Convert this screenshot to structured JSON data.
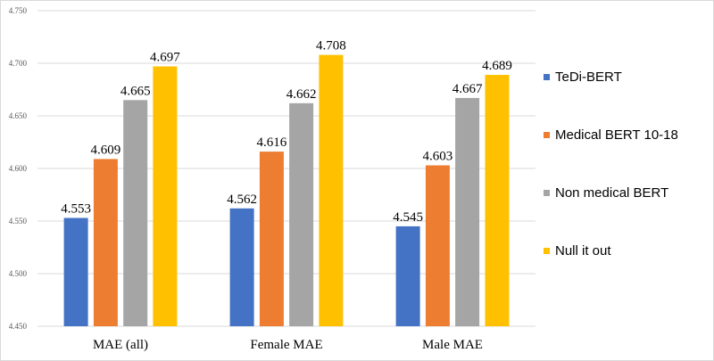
{
  "chart_data": {
    "type": "bar",
    "title": "",
    "xlabel": "",
    "ylabel": "",
    "categories": [
      "MAE (all)",
      "Female MAE",
      "Male MAE"
    ],
    "ylim": [
      4.45,
      4.75
    ],
    "yticks": [
      "4.450",
      "4.500",
      "4.550",
      "4.600",
      "4.650",
      "4.700",
      "4.750"
    ],
    "grid": true,
    "legend_position": "right",
    "series": [
      {
        "name": "TeDi-BERT",
        "color": "#4472c4",
        "values": [
          4.553,
          4.562,
          4.545
        ],
        "labels": [
          "4.553",
          "4.562",
          "4.545"
        ]
      },
      {
        "name": "Medical BERT 10-18",
        "color": "#ed7d31",
        "values": [
          4.609,
          4.616,
          4.603
        ],
        "labels": [
          "4.609",
          "4.616",
          "4.603"
        ]
      },
      {
        "name": "Non medical BERT",
        "color": "#a5a5a5",
        "values": [
          4.665,
          4.662,
          4.667
        ],
        "labels": [
          "4.665",
          "4.662",
          "4.667"
        ]
      },
      {
        "name": "Null it out",
        "color": "#ffc000",
        "values": [
          4.697,
          4.708,
          4.689
        ],
        "labels": [
          "4.697",
          "4.708",
          "4.689"
        ]
      }
    ]
  }
}
